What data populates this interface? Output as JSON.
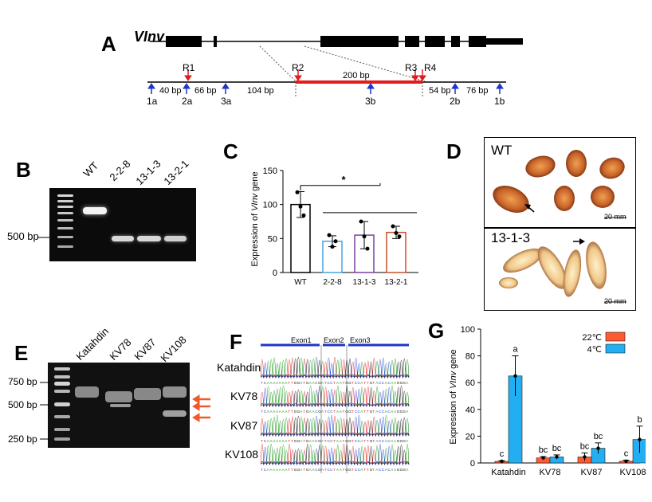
{
  "panels": {
    "A": "A",
    "B": "B",
    "C": "C",
    "D": "D",
    "E": "E",
    "F": "F",
    "G": "G"
  },
  "panel_a": {
    "gene_name": "VInv",
    "sites": [
      "R1",
      "R2",
      "R3",
      "R4"
    ],
    "deletion_label": "200 bp",
    "distances": [
      "40 bp",
      "66 bp",
      "104 bp",
      "54 bp",
      "76 bp"
    ],
    "primers": [
      "1a",
      "2a",
      "3a",
      "3b",
      "2b",
      "1b"
    ]
  },
  "panel_b": {
    "lanes": [
      "WT",
      "2-2-8",
      "13-1-3",
      "13-2-1"
    ],
    "marker_label": "500 bp"
  },
  "panel_d": {
    "captions": [
      "WT",
      "13-1-3"
    ],
    "scale_bar": "20 mm",
    "colors": {
      "tuber_core": "#c8642a",
      "tuber_edge": "#5a1e08"
    }
  },
  "panel_e": {
    "lanes": [
      "Katahdin",
      "KV78",
      "KV87",
      "KV108"
    ],
    "markers": [
      "750 bp",
      "500 bp",
      "250 bp"
    ],
    "arrow_color": "#f05a28"
  },
  "panel_f": {
    "exons": [
      "Exon1",
      "Exon2",
      "Exon3"
    ],
    "samples": [
      "Katahdin",
      "KV78",
      "KV87",
      "KV108"
    ],
    "sequence": "TCAAAAAAATTGGATGAACGATCCTAATGGTCCATTGTACCACAAGGGA"
  },
  "chart_data": [
    {
      "type": "bar",
      "panel": "C",
      "categories": [
        "WT",
        "2-2-8",
        "13-1-3",
        "13-2-1"
      ],
      "values": [
        100,
        46,
        55,
        59
      ],
      "errors": [
        19,
        8,
        20,
        9
      ],
      "points": [
        [
          118,
          97,
          84
        ],
        [
          55,
          38,
          46
        ],
        [
          75,
          53,
          35
        ],
        [
          68,
          58,
          53
        ]
      ],
      "ylabel_parts": [
        "Expression of ",
        "VInv",
        " gene"
      ],
      "yticks": [
        "0",
        "50",
        "100",
        "150"
      ],
      "ylim": [
        0,
        150
      ],
      "significance": "*",
      "colors": {
        "WT": "#000000",
        "2-2-8": "#4aa3df",
        "13-1-3": "#7e3fa0",
        "13-2-1": "#c8502a"
      }
    },
    {
      "type": "bar",
      "panel": "G",
      "categories": [
        "Katahdin",
        "KV78",
        "KV87",
        "KV108"
      ],
      "series": [
        {
          "name": "22℃",
          "values": [
            1.2,
            3.8,
            4.5,
            1.3
          ],
          "errors": [
            0.5,
            1.0,
            3.0,
            0.8
          ],
          "letters": [
            "c",
            "bc",
            "bc",
            "c"
          ],
          "color": "#ff5a30"
        },
        {
          "name": "4℃",
          "values": [
            65,
            4.5,
            11,
            17.5
          ],
          "errors": [
            15,
            1.5,
            4,
            10
          ],
          "letters": [
            "a",
            "bc",
            "bc",
            "b"
          ],
          "color": "#22aef0"
        }
      ],
      "ylabel_parts": [
        "Expression of ",
        "VInv",
        " gene"
      ],
      "yticks": [
        "0",
        "20",
        "40",
        "60",
        "80",
        "100"
      ],
      "ylim": [
        0,
        100
      ],
      "legend_position": "top-right"
    }
  ]
}
